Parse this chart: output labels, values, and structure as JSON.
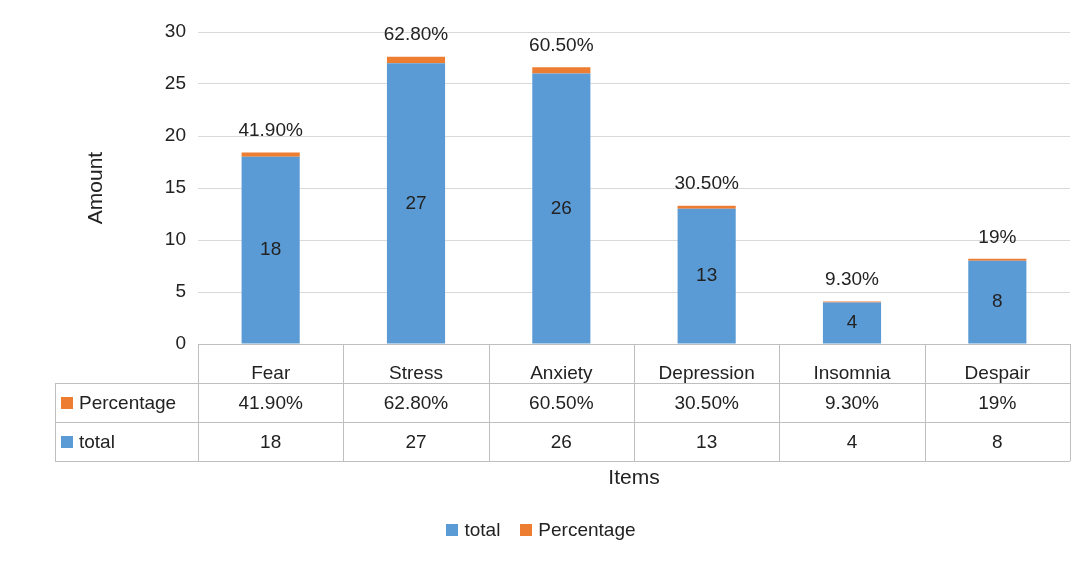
{
  "chart_data": {
    "type": "bar",
    "stacked": true,
    "xlabel": "Items",
    "ylabel": "Amount",
    "categories": [
      "Fear",
      "Stress",
      "Anxiety",
      "Depression",
      "Insomnia",
      "Despair"
    ],
    "series": [
      {
        "name": "total",
        "color": "#5b9bd5",
        "values": [
          18,
          27,
          26,
          13,
          4,
          8
        ],
        "value_labels": [
          "18",
          "27",
          "26",
          "13",
          "4",
          "8"
        ]
      },
      {
        "name": "Percentage",
        "color": "#ed7d31",
        "values": [
          0.419,
          0.628,
          0.605,
          0.305,
          0.093,
          0.19
        ],
        "value_labels": [
          "41.90%",
          "62.80%",
          "60.50%",
          "30.50%",
          "9.30%",
          "19%"
        ]
      }
    ],
    "ylim": [
      0,
      30
    ],
    "yticks": [
      0,
      5,
      10,
      15,
      20,
      25,
      30
    ],
    "grid": "y",
    "legend": "bottom"
  }
}
